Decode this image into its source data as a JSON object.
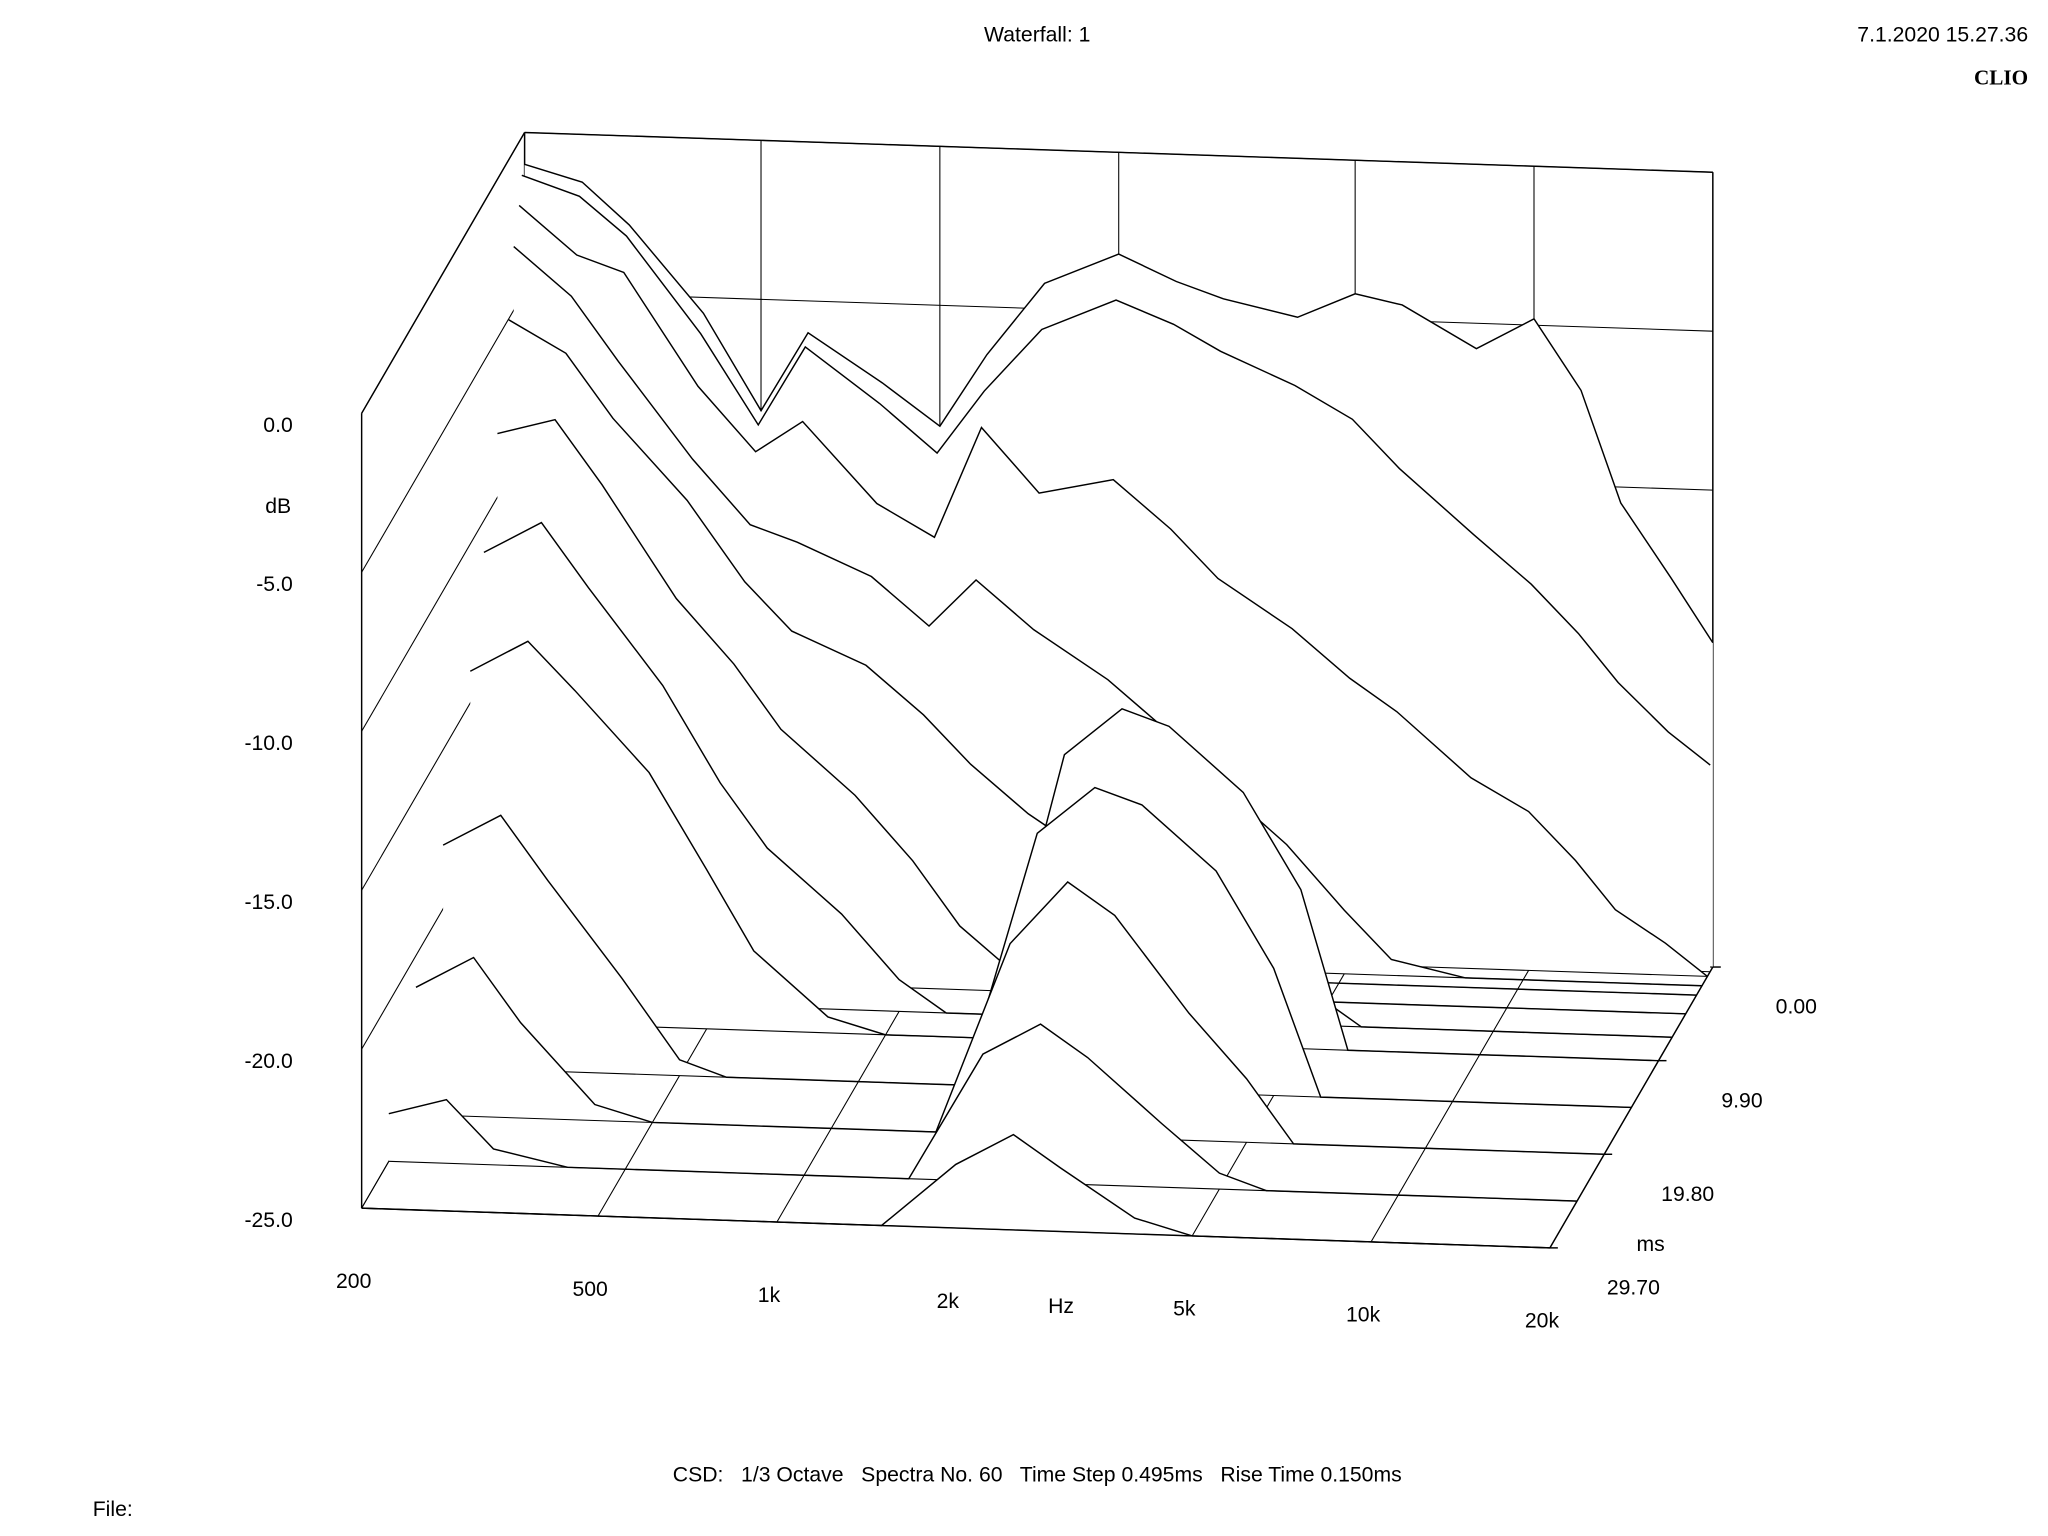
{
  "chart_data": {
    "type": "waterfall",
    "title": "Waterfall: 1",
    "timestamp": "7.1.2020 15.27.36",
    "brand": "CLIO",
    "settings": "CSD:   1/3 Octave   Spectra No. 60   Time Step 0.495ms   Rise Time 0.150ms",
    "file_label": "File:",
    "x_label": "Hz",
    "y_label": "dB",
    "z_label": "ms",
    "log_x": true,
    "grid": true,
    "color": "#000000",
    "xlim": [
      200,
      20000
    ],
    "xticks": [
      200,
      500,
      {
        "value": 1000,
        "label": "1k"
      },
      {
        "value": 2000,
        "label": "2k"
      },
      {
        "value": 5000,
        "label": "5k"
      },
      {
        "value": 10000,
        "label": "10k"
      },
      {
        "value": 20000,
        "label": "20k"
      }
    ],
    "ylim": [
      -25,
      0
    ],
    "yticks": [
      {
        "value": 0,
        "label": "0.0"
      },
      {
        "value": -5,
        "label": "-5.0"
      },
      {
        "value": -10,
        "label": "-10.0"
      },
      {
        "value": -15,
        "label": "-15.0"
      },
      {
        "value": -20,
        "label": "-20.0"
      },
      {
        "value": -25,
        "label": "-25.0"
      }
    ],
    "zlim": [
      0,
      29.7
    ],
    "zticks": [
      {
        "value": 0,
        "label": "0.00"
      },
      {
        "value": 9.9,
        "label": "9.90"
      },
      {
        "value": 19.8,
        "label": "19.80"
      },
      {
        "value": 29.7,
        "label": "29.70"
      }
    ],
    "x": [
      200,
      250,
      300,
      400,
      500,
      600,
      800,
      1000,
      1200,
      1500,
      2000,
      2500,
      3000,
      4000,
      5000,
      6000,
      8000,
      10000,
      12000,
      14000,
      17000,
      20000
    ],
    "series": [
      {
        "z": 0,
        "values": [
          -1.0,
          -1.5,
          -2.8,
          -5.5,
          -8.5,
          -6.0,
          -7.5,
          -8.8,
          -6.5,
          -4.2,
          -3.2,
          -4.0,
          -4.5,
          -5.0,
          -4.2,
          -4.5,
          -5.8,
          -4.8,
          -7.0,
          -10.5,
          -12.8,
          -14.8
        ]
      },
      {
        "z": 0.495,
        "values": [
          -1.2,
          -1.8,
          -3.0,
          -6.0,
          -8.8,
          -6.3,
          -8.0,
          -9.5,
          -7.5,
          -5.5,
          -4.5,
          -5.2,
          -6.0,
          -7.0,
          -8.0,
          -9.5,
          -11.5,
          -13.0,
          -14.5,
          -16.0,
          -17.5,
          -18.5
        ]
      },
      {
        "z": 0.99,
        "values": [
          -2.0,
          -3.5,
          -4.0,
          -7.5,
          -9.5,
          -8.5,
          -11.0,
          -12.0,
          -8.5,
          -10.5,
          -10.0,
          -11.5,
          -13.0,
          -14.5,
          -16.0,
          -17.0,
          -19.0,
          -20.0,
          -21.5,
          -23.0,
          -24.0,
          -25.0
        ]
      },
      {
        "z": 1.98,
        "values": [
          -3.0,
          -4.5,
          -6.5,
          -9.5,
          -11.5,
          -12.0,
          -13.0,
          -14.5,
          -13.0,
          -14.5,
          -16.0,
          -17.5,
          -19.0,
          -21.0,
          -23.0,
          -24.5,
          -25,
          -25,
          -25,
          -25,
          -25,
          -25
        ]
      },
      {
        "z": 2.97,
        "values": [
          -5.0,
          -6.0,
          -8.0,
          -10.5,
          -13.0,
          -14.5,
          -15.5,
          -17.0,
          -18.5,
          -20.0,
          -21.5,
          -23.0,
          -24.5,
          -25,
          -25,
          -25,
          -25,
          -25,
          -25,
          -25,
          -25,
          -25
        ]
      },
      {
        "z": 4.95,
        "values": [
          -8.0,
          -7.5,
          -9.5,
          -13.0,
          -15.0,
          -17.0,
          -19.0,
          -21.0,
          -23.0,
          -24.5,
          -25,
          -25,
          -25,
          -25,
          -25,
          -25,
          -25,
          -25,
          -25,
          -25,
          -25,
          -25
        ]
      },
      {
        "z": 7.425,
        "values": [
          -11,
          -10,
          -12,
          -15,
          -18,
          -20,
          -22,
          -24,
          -25,
          -25,
          -20,
          -19,
          -20,
          -22,
          -24,
          -25,
          -25,
          -25,
          -25,
          -25,
          -25,
          -25
        ]
      },
      {
        "z": 9.9,
        "values": [
          -14,
          -13,
          -14.5,
          -17,
          -20,
          -22.5,
          -24.5,
          -25,
          -25,
          -25,
          -16,
          -14.5,
          -15,
          -17,
          -20,
          -25,
          -25,
          -25,
          -25,
          -25,
          -25,
          -25
        ]
      },
      {
        "z": 14.85,
        "values": [
          -18,
          -17,
          -19,
          -22,
          -24.5,
          -25,
          -25,
          -25,
          -25,
          -25,
          -17,
          -15.5,
          -16,
          -18,
          -21,
          -25,
          -25,
          -25,
          -25,
          -25,
          -25,
          -25
        ]
      },
      {
        "z": 19.8,
        "values": [
          -21,
          -20,
          -22,
          -24.5,
          -25,
          -25,
          -25,
          -25,
          -25,
          -25,
          -19,
          -17,
          -18,
          -21,
          -23,
          -25,
          -25,
          -25,
          -25,
          -25,
          -25,
          -25
        ]
      },
      {
        "z": 24.75,
        "values": [
          -23.5,
          -23,
          -24.5,
          -25,
          -25,
          -25,
          -25,
          -25,
          -25,
          -25,
          -21,
          -20,
          -21,
          -23,
          -24.5,
          -25,
          -25,
          -25,
          -25,
          -25,
          -25,
          -25
        ]
      },
      {
        "z": 29.7,
        "values": [
          -25,
          -25,
          -25,
          -25,
          -25,
          -25,
          -25,
          -25,
          -25,
          -25,
          -23,
          -22,
          -23,
          -24.5,
          -25,
          -25,
          -25,
          -25,
          -25,
          -25,
          -25,
          -25
        ]
      }
    ]
  }
}
